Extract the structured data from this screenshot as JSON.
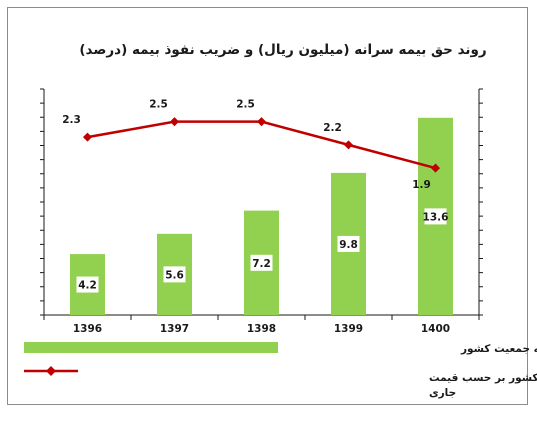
{
  "chart_data": {
    "type": "bar",
    "title": "روند حق بیمه سرانه (میلیون ریال) و ضریب نفوذ بیمه  (درصد)",
    "categories": [
      "1396",
      "1397",
      "1398",
      "1399",
      "1400"
    ],
    "series": [
      {
        "name": "حق بیمه سرانه = نسبت کل حق بیمه تولیدی به جمعیت کشور",
        "kind": "bar",
        "color": "#92d050",
        "values": [
          4.2,
          5.6,
          7.2,
          9.8,
          13.6
        ],
        "ylim": [
          0,
          16
        ]
      },
      {
        "name_lines": [
          "ضریب نفوذ بیمه = نسبت کل حق بیمه تولیدی به تولید ناخالص داخلی کشور بر حسب قیمت",
          "جاری"
        ],
        "kind": "line",
        "color": "#c00000",
        "values": [
          2.3,
          2.5,
          2.5,
          2.2,
          1.9
        ],
        "ylim": [
          0,
          3
        ]
      }
    ],
    "xlabel": "",
    "ylabel": "",
    "grid": false,
    "axis_tick_labels_shown": false,
    "legend_position": "bottom"
  }
}
